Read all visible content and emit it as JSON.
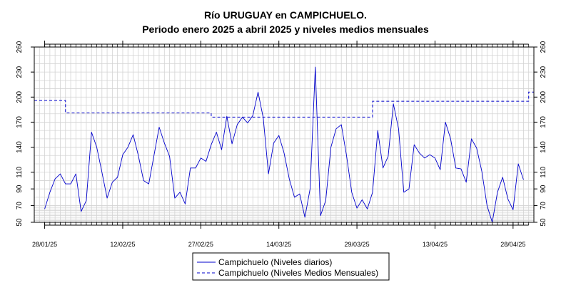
{
  "chart_data": {
    "type": "line",
    "title": "Río URUGUAY en CAMPICHUELO.",
    "subtitle": "Periodo enero 2025 a abril 2025 y niveles medios mensuales",
    "xlabel": "",
    "ylabel": "",
    "ylim": [
      50,
      260
    ],
    "xlim": [
      "2025-01-26",
      "2025-05-02"
    ],
    "y_ticks": [
      50,
      70,
      90,
      110,
      140,
      170,
      200,
      230,
      260
    ],
    "x_tick_labels": [
      "28/01/25",
      "12/02/25",
      "27/02/25",
      "14/03/25",
      "29/03/25",
      "13/04/25",
      "28/04/25"
    ],
    "x_tick_dates": [
      "2025-01-28",
      "2025-02-12",
      "2025-02-27",
      "2025-03-14",
      "2025-03-29",
      "2025-04-13",
      "2025-04-28"
    ],
    "grid": true,
    "legend_position": "bottom-center",
    "colors": {
      "series": "#0000cc",
      "grid": "#d3d3d3",
      "axis": "#000000"
    },
    "series": [
      {
        "name": "Campichuelo (Niveles diarios)",
        "style": "solid",
        "x": [
          "2025-01-28",
          "2025-01-29",
          "2025-01-30",
          "2025-01-31",
          "2025-02-01",
          "2025-02-02",
          "2025-02-03",
          "2025-02-04",
          "2025-02-05",
          "2025-02-06",
          "2025-02-07",
          "2025-02-08",
          "2025-02-09",
          "2025-02-10",
          "2025-02-11",
          "2025-02-12",
          "2025-02-13",
          "2025-02-14",
          "2025-02-15",
          "2025-02-16",
          "2025-02-17",
          "2025-02-18",
          "2025-02-19",
          "2025-02-20",
          "2025-02-21",
          "2025-02-22",
          "2025-02-23",
          "2025-02-24",
          "2025-02-25",
          "2025-02-26",
          "2025-02-27",
          "2025-02-28",
          "2025-03-01",
          "2025-03-02",
          "2025-03-03",
          "2025-03-04",
          "2025-03-05",
          "2025-03-06",
          "2025-03-07",
          "2025-03-08",
          "2025-03-09",
          "2025-03-10",
          "2025-03-11",
          "2025-03-12",
          "2025-03-13",
          "2025-03-14",
          "2025-03-15",
          "2025-03-16",
          "2025-03-17",
          "2025-03-18",
          "2025-03-19",
          "2025-03-20",
          "2025-03-21",
          "2025-03-22",
          "2025-03-23",
          "2025-03-24",
          "2025-03-25",
          "2025-03-26",
          "2025-03-27",
          "2025-03-28",
          "2025-03-29",
          "2025-03-30",
          "2025-03-31",
          "2025-04-01",
          "2025-04-02",
          "2025-04-03",
          "2025-04-04",
          "2025-04-05",
          "2025-04-06",
          "2025-04-07",
          "2025-04-08",
          "2025-04-09",
          "2025-04-10",
          "2025-04-11",
          "2025-04-12",
          "2025-04-13",
          "2025-04-14",
          "2025-04-15",
          "2025-04-16",
          "2025-04-17",
          "2025-04-18",
          "2025-04-19",
          "2025-04-20",
          "2025-04-21",
          "2025-04-22",
          "2025-04-23",
          "2025-04-24",
          "2025-04-25",
          "2025-04-26",
          "2025-04-27",
          "2025-04-28",
          "2025-04-29",
          "2025-04-30"
        ],
        "values": [
          66,
          86,
          102,
          108,
          96,
          96,
          108,
          63,
          76,
          158,
          140,
          110,
          79,
          98,
          104,
          131,
          140,
          155,
          130,
          100,
          96,
          130,
          164,
          145,
          129,
          79,
          86,
          72,
          115,
          115,
          127,
          123,
          143,
          158,
          137,
          177,
          144,
          167,
          176,
          169,
          178,
          206,
          175,
          108,
          145,
          154,
          133,
          102,
          80,
          84,
          56,
          90,
          236,
          58,
          76,
          140,
          162,
          167,
          130,
          86,
          67,
          77,
          66,
          86,
          160,
          115,
          129,
          192,
          162,
          86,
          90,
          143,
          133,
          127,
          131,
          127,
          113,
          170,
          150,
          115,
          114,
          98,
          150,
          139,
          111,
          70,
          50,
          86,
          104,
          78,
          65,
          120,
          101
        ]
      },
      {
        "name": "Campichuelo (Niveles Medios Mensuales)",
        "style": "dashed",
        "x": [
          "2025-01-26",
          "2025-02-01",
          "2025-02-01",
          "2025-03-01",
          "2025-03-01",
          "2025-04-01",
          "2025-04-01",
          "2025-05-01",
          "2025-05-01",
          "2025-05-02"
        ],
        "values": [
          196,
          196,
          181,
          181,
          176,
          176,
          195,
          195,
          206,
          206
        ]
      }
    ]
  }
}
